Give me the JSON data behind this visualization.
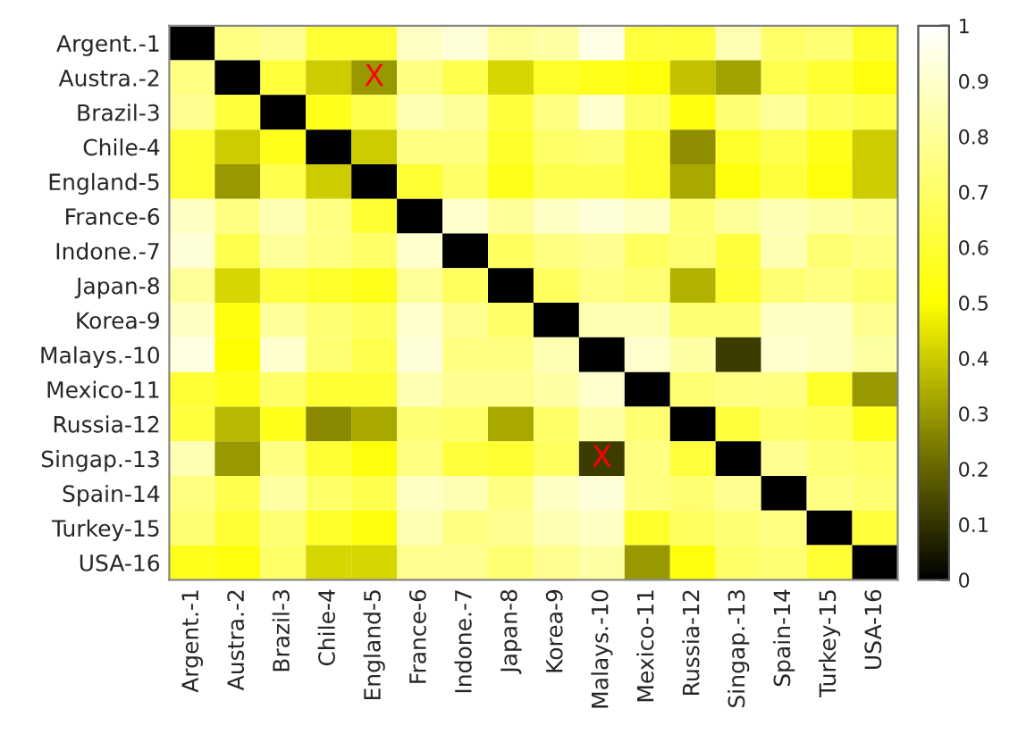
{
  "chart_data": {
    "type": "heatmap",
    "categories": [
      "Argent.-1",
      "Austra.-2",
      "Brazil-3",
      "Chile-4",
      "England-5",
      "France-6",
      "Indone.-7",
      "Japan-8",
      "Korea-9",
      "Malays.-10",
      "Mexico-11",
      "Russia-12",
      "Singap.-13",
      "Spain-14",
      "Turkey-15",
      "USA-16"
    ],
    "y_categories": [
      "Argent.-1",
      "Austra.-2",
      "Brazil-3",
      "Chile-4",
      "England-5",
      "France-6",
      "Indone.-7",
      "Japan-8",
      "Korea-9",
      "Malays.-10",
      "Mexico-11",
      "Russia-12",
      "Singap.-13",
      "Spain-14",
      "Turkey-15",
      "USA-16"
    ],
    "cells": [
      [
        0,
        0.75,
        0.78,
        0.6,
        0.6,
        0.88,
        0.92,
        0.8,
        0.82,
        0.95,
        0.62,
        0.62,
        0.85,
        0.7,
        0.72,
        0.58
      ],
      [
        0.75,
        0,
        0.62,
        0.4,
        0.3,
        0.75,
        0.65,
        0.42,
        0.58,
        0.55,
        0.52,
        0.38,
        0.32,
        0.65,
        0.6,
        0.52
      ],
      [
        0.78,
        0.62,
        0,
        0.55,
        0.65,
        0.85,
        0.8,
        0.62,
        0.75,
        0.9,
        0.7,
        0.52,
        0.72,
        0.8,
        0.68,
        0.65
      ],
      [
        0.6,
        0.4,
        0.55,
        0,
        0.4,
        0.75,
        0.75,
        0.58,
        0.7,
        0.72,
        0.6,
        0.28,
        0.58,
        0.65,
        0.55,
        0.4
      ],
      [
        0.6,
        0.3,
        0.65,
        0.4,
        0,
        0.6,
        0.7,
        0.55,
        0.65,
        0.65,
        0.6,
        0.33,
        0.52,
        0.62,
        0.52,
        0.4
      ],
      [
        0.88,
        0.75,
        0.85,
        0.75,
        0.6,
        0,
        0.9,
        0.8,
        0.88,
        0.92,
        0.88,
        0.72,
        0.8,
        0.85,
        0.82,
        0.78
      ],
      [
        0.92,
        0.65,
        0.8,
        0.75,
        0.7,
        0.9,
        0,
        0.68,
        0.75,
        0.78,
        0.68,
        0.72,
        0.62,
        0.85,
        0.72,
        0.75
      ],
      [
        0.8,
        0.42,
        0.62,
        0.58,
        0.55,
        0.8,
        0.68,
        0,
        0.68,
        0.75,
        0.72,
        0.35,
        0.6,
        0.72,
        0.75,
        0.7
      ],
      [
        0.88,
        0.52,
        0.8,
        0.72,
        0.68,
        0.9,
        0.78,
        0.7,
        0,
        0.85,
        0.85,
        0.72,
        0.72,
        0.88,
        0.88,
        0.78
      ],
      [
        0.94,
        0.5,
        0.9,
        0.72,
        0.65,
        0.92,
        0.75,
        0.75,
        0.85,
        0,
        0.9,
        0.82,
        0.12,
        0.9,
        0.88,
        0.82
      ],
      [
        0.6,
        0.55,
        0.7,
        0.6,
        0.6,
        0.85,
        0.78,
        0.78,
        0.82,
        0.9,
        0,
        0.72,
        0.75,
        0.75,
        0.58,
        0.3
      ],
      [
        0.62,
        0.36,
        0.55,
        0.27,
        0.33,
        0.72,
        0.7,
        0.33,
        0.7,
        0.82,
        0.72,
        0,
        0.62,
        0.7,
        0.68,
        0.55
      ],
      [
        0.85,
        0.3,
        0.75,
        0.6,
        0.52,
        0.75,
        0.62,
        0.6,
        0.68,
        0.12,
        0.75,
        0.62,
        0,
        0.78,
        0.72,
        0.7
      ],
      [
        0.75,
        0.65,
        0.82,
        0.7,
        0.65,
        0.88,
        0.85,
        0.75,
        0.88,
        0.92,
        0.75,
        0.72,
        0.78,
        0,
        0.75,
        0.72
      ],
      [
        0.72,
        0.6,
        0.72,
        0.58,
        0.52,
        0.85,
        0.75,
        0.78,
        0.85,
        0.88,
        0.58,
        0.68,
        0.72,
        0.75,
        0,
        0.62
      ],
      [
        0.55,
        0.52,
        0.7,
        0.42,
        0.42,
        0.78,
        0.78,
        0.72,
        0.78,
        0.82,
        0.3,
        0.52,
        0.7,
        0.72,
        0.6,
        0
      ]
    ],
    "clim": [
      0,
      1
    ],
    "cticks": [
      0,
      0.1,
      0.2,
      0.3,
      0.4,
      0.5,
      0.6,
      0.7,
      0.8,
      0.9,
      1
    ],
    "cell_labels": [
      [
        null,
        null,
        null,
        null,
        null,
        null,
        null,
        null,
        null,
        null,
        null,
        null,
        null,
        null,
        null,
        null
      ],
      [
        null,
        null,
        null,
        null,
        "X",
        null,
        null,
        null,
        null,
        null,
        null,
        null,
        null,
        null,
        null,
        null
      ],
      [
        null,
        null,
        null,
        null,
        null,
        null,
        null,
        null,
        null,
        null,
        null,
        null,
        null,
        null,
        null,
        null
      ],
      [
        null,
        null,
        null,
        null,
        null,
        null,
        null,
        null,
        null,
        null,
        null,
        null,
        null,
        null,
        null,
        null
      ],
      [
        null,
        null,
        null,
        null,
        null,
        null,
        null,
        null,
        null,
        null,
        null,
        null,
        null,
        null,
        null,
        null
      ],
      [
        null,
        null,
        null,
        null,
        null,
        null,
        null,
        null,
        null,
        null,
        null,
        null,
        null,
        null,
        null,
        null
      ],
      [
        null,
        null,
        null,
        null,
        null,
        null,
        null,
        null,
        null,
        null,
        null,
        null,
        null,
        null,
        null,
        null
      ],
      [
        null,
        null,
        null,
        null,
        null,
        null,
        null,
        null,
        null,
        null,
        null,
        null,
        null,
        null,
        null,
        null
      ],
      [
        null,
        null,
        null,
        null,
        null,
        null,
        null,
        null,
        null,
        null,
        null,
        null,
        null,
        null,
        null,
        null
      ],
      [
        null,
        null,
        null,
        null,
        null,
        null,
        null,
        null,
        null,
        null,
        null,
        null,
        null,
        null,
        null,
        null
      ],
      [
        null,
        null,
        null,
        null,
        null,
        null,
        null,
        null,
        null,
        null,
        null,
        null,
        null,
        null,
        null,
        null
      ],
      [
        null,
        null,
        null,
        null,
        null,
        null,
        null,
        null,
        null,
        null,
        null,
        null,
        null,
        null,
        null,
        null
      ],
      [
        null,
        null,
        null,
        null,
        null,
        null,
        null,
        null,
        null,
        "X",
        null,
        null,
        null,
        null,
        null,
        null
      ],
      [
        null,
        null,
        null,
        null,
        null,
        null,
        null,
        null,
        null,
        null,
        null,
        null,
        null,
        null,
        null,
        null
      ],
      [
        null,
        null,
        null,
        null,
        null,
        null,
        null,
        null,
        null,
        null,
        null,
        null,
        null,
        null,
        null,
        null
      ],
      [
        null,
        null,
        null,
        null,
        null,
        null,
        null,
        null,
        null,
        null,
        null,
        null,
        null,
        null,
        null,
        null
      ]
    ]
  }
}
